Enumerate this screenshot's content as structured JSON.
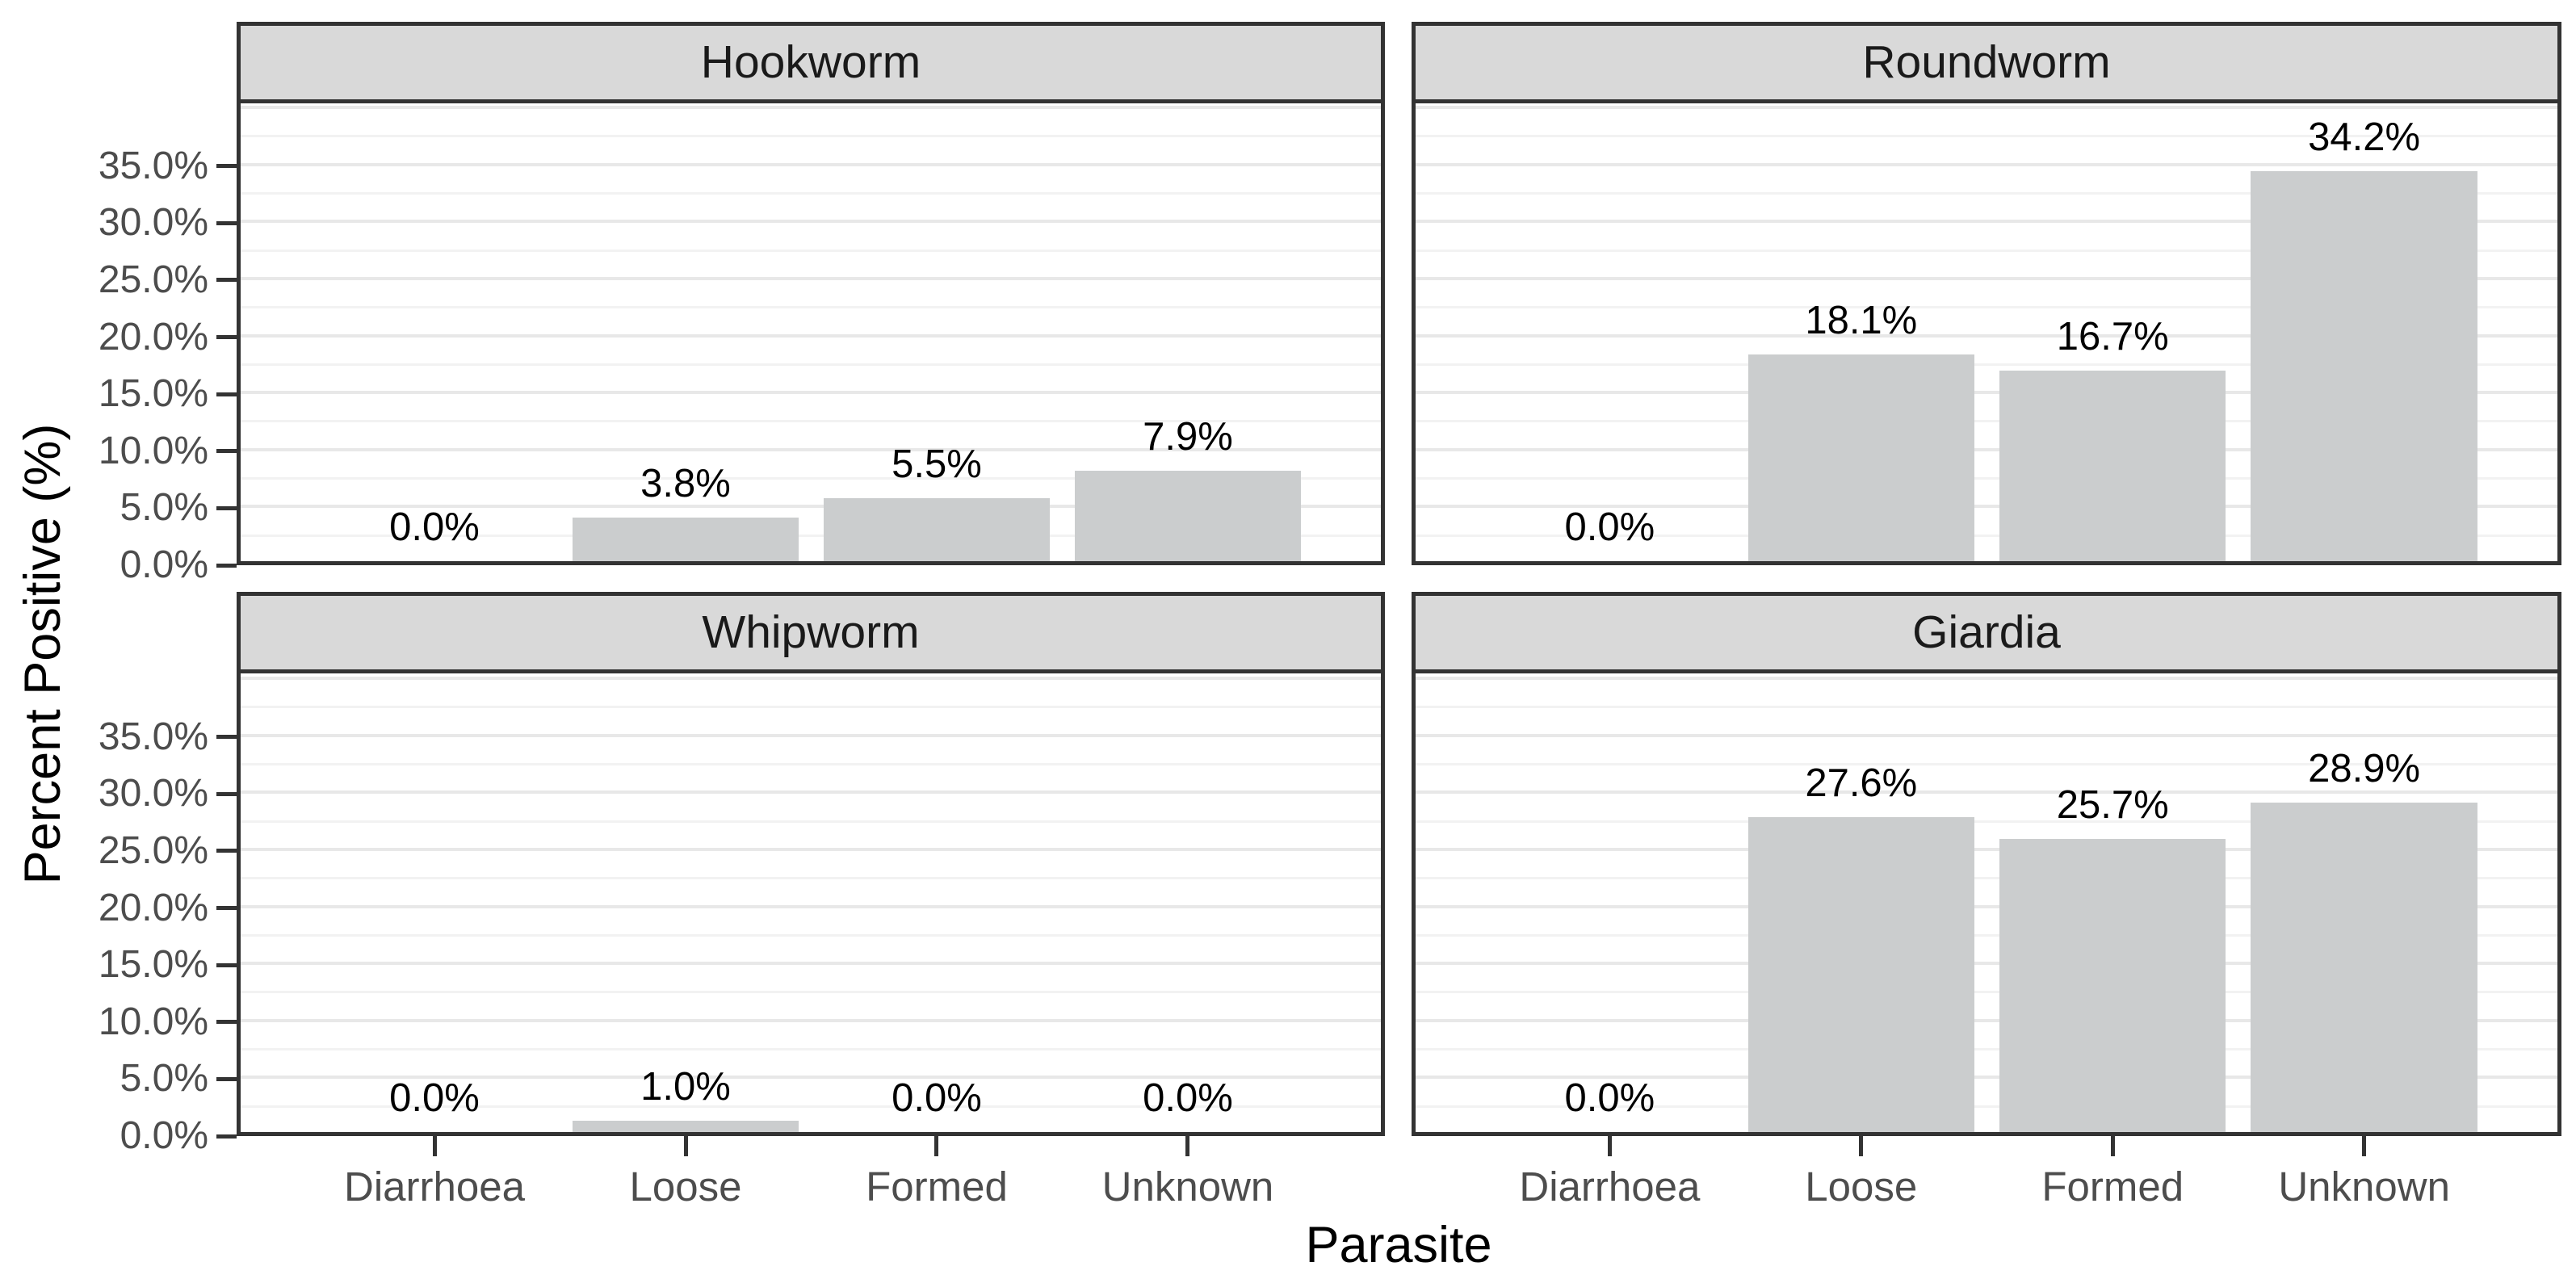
{
  "chart_data": {
    "type": "bar",
    "title": "",
    "xlabel": "Parasite",
    "ylabel": "Percent Positive (%)",
    "categories": [
      "Diarrhoea",
      "Loose",
      "Formed",
      "Unknown"
    ],
    "y_tick_values": [
      0,
      5,
      10,
      15,
      20,
      25,
      30,
      35
    ],
    "y_tick_labels": [
      "0.0%",
      "5.0%",
      "10.0%",
      "15.0%",
      "20.0%",
      "25.0%",
      "30.0%",
      "35.0%"
    ],
    "ylim": [
      0,
      40.5
    ],
    "grid": {
      "shown": true,
      "major_step": 5,
      "minor_step": 2.5
    },
    "legend_position": "none",
    "facets": [
      {
        "label": "Hookworm",
        "values": [
          0.0,
          3.8,
          5.5,
          7.9
        ],
        "value_labels": [
          "0.0%",
          "3.8%",
          "5.5%",
          "7.9%"
        ]
      },
      {
        "label": "Roundworm",
        "values": [
          0.0,
          18.1,
          16.7,
          34.2
        ],
        "value_labels": [
          "0.0%",
          "18.1%",
          "16.7%",
          "34.2%"
        ]
      },
      {
        "label": "Whipworm",
        "values": [
          0.0,
          1.0,
          0.0,
          0.0
        ],
        "value_labels": [
          "0.0%",
          "1.0%",
          "0.0%",
          "0.0%"
        ]
      },
      {
        "label": "Giardia",
        "values": [
          0.0,
          27.6,
          25.7,
          28.9
        ],
        "value_labels": [
          "0.0%",
          "27.6%",
          "25.7%",
          "28.9%"
        ]
      }
    ],
    "colors": {
      "bar_fill": "#CBCDCE",
      "strip_fill": "#D9D9D9",
      "panel_border": "#333333",
      "grid_major": "#E8E8E8",
      "grid_minor": "#F2F2F2",
      "tick_text": "#4D4D4D",
      "value_label_text": "#000000",
      "background": "#FFFFFF"
    }
  }
}
